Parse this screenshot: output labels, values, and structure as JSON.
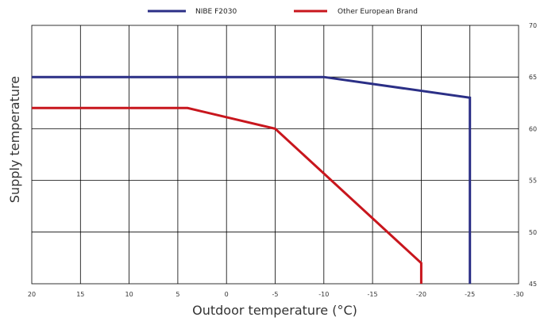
{
  "chart_data": {
    "type": "line",
    "xlabel": "Outdoor temperature (°C)",
    "ylabel": "Supply temperature",
    "xlim": [
      20,
      -30
    ],
    "ylim": [
      45,
      70
    ],
    "x_ticks": [
      "20",
      "15",
      "10",
      "5",
      "0",
      "-5",
      "-10",
      "-15",
      "-20",
      "-25",
      "-30"
    ],
    "y_ticks": [
      "45",
      "50",
      "55",
      "60",
      "65",
      "70"
    ],
    "y_axis_side": "right",
    "grid": true,
    "legend_position": "top",
    "series": [
      {
        "name": "NIBE F2030",
        "color": "#2b2f86",
        "x": [
          20,
          -10,
          -25,
          -25
        ],
        "y": [
          65,
          65,
          63,
          45
        ]
      },
      {
        "name": "Other European Brand",
        "color": "#c8161d",
        "x": [
          20,
          4,
          -5,
          -20,
          -20
        ],
        "y": [
          62,
          62,
          60,
          47,
          45
        ]
      }
    ]
  }
}
